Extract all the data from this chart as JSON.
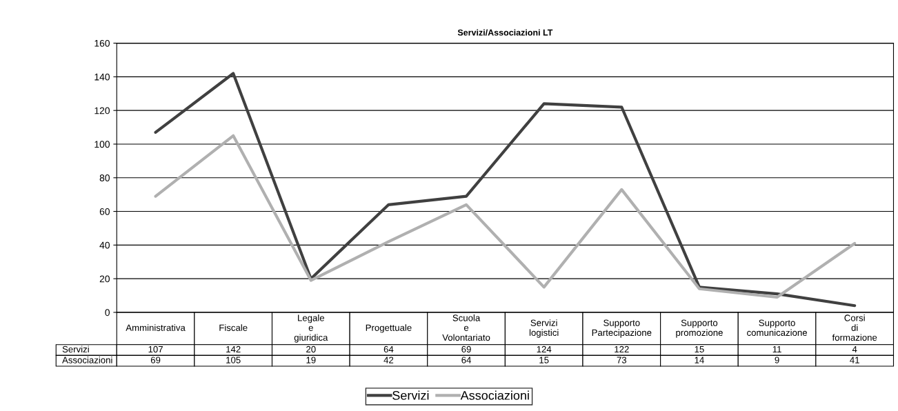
{
  "chart_data": {
    "type": "line",
    "title": "Servizi/Associazioni LT",
    "categories": [
      "Amministrativa",
      "Fiscale",
      "Legale e giuridica",
      "Progettuale",
      "Scuola e Volontariato",
      "Servizi logistici",
      "Supporto Partecipazione",
      "Supporto promozione",
      "Supporto comunicazione",
      "Corsi di formazione"
    ],
    "series": [
      {
        "name": "Servizi",
        "color": "#404040",
        "values": [
          107,
          142,
          20,
          64,
          69,
          124,
          122,
          15,
          11,
          4
        ]
      },
      {
        "name": "Associazioni",
        "color": "#b0b0b0",
        "values": [
          69,
          105,
          19,
          42,
          64,
          15,
          73,
          14,
          9,
          41
        ]
      }
    ],
    "ylim": [
      0,
      160
    ],
    "yticks": [
      0,
      20,
      40,
      60,
      80,
      100,
      120,
      140,
      160
    ],
    "grid": "y",
    "legend": "bottom",
    "data_labels": true,
    "marker": "none",
    "line_style": "solid"
  }
}
